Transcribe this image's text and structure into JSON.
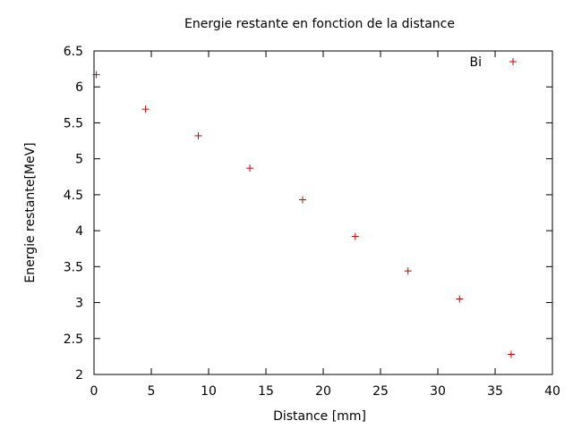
{
  "chart_data": {
    "type": "scatter",
    "title": "Energie restante en fonction de la distance",
    "xlabel": "Distance [mm]",
    "ylabel": "Energie restante[MeV]",
    "xlim": [
      0,
      40
    ],
    "ylim": [
      2,
      6.5
    ],
    "xticks": [
      "0",
      "5",
      "10",
      "15",
      "20",
      "25",
      "30",
      "35",
      "40"
    ],
    "yticks": [
      "2",
      "2.5",
      "3",
      "3.5",
      "4",
      "4.5",
      "5",
      "5.5",
      "6",
      "6.5"
    ],
    "grid": false,
    "legend_position": "top-right",
    "series": [
      {
        "name": "Bi",
        "color": "#cc0000",
        "marker": "plus",
        "x": [
          0.2,
          4.5,
          9.1,
          13.6,
          18.2,
          22.8,
          27.4,
          31.9,
          36.4
        ],
        "y": [
          6.17,
          5.69,
          5.32,
          4.87,
          4.43,
          3.92,
          3.44,
          3.05,
          2.28
        ]
      }
    ]
  }
}
